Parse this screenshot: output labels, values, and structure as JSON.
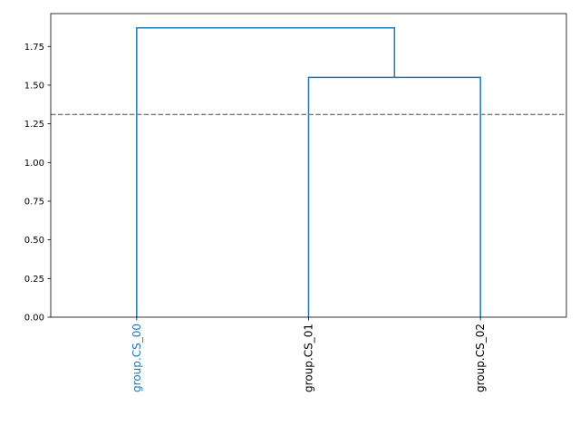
{
  "chart_data": {
    "type": "dendrogram",
    "title": "",
    "xlabel": "",
    "ylabel": "",
    "ylim": [
      0,
      1.9625
    ],
    "yticks": [
      0.0,
      0.25,
      0.5,
      0.75,
      1.0,
      1.25,
      1.5,
      1.75
    ],
    "ytick_labels": [
      "0.00",
      "0.25",
      "0.50",
      "0.75",
      "1.00",
      "1.25",
      "1.50",
      "1.75"
    ],
    "leaves": [
      {
        "label": "group.CS_00",
        "color": "#1f77b4"
      },
      {
        "label": "group.CS_01",
        "color": "#000000"
      },
      {
        "label": "group.CS_02",
        "color": "#000000"
      }
    ],
    "merges": [
      {
        "left": 1,
        "right": 2,
        "height": 1.55
      },
      {
        "left": 0,
        "right": 3,
        "height": 1.87
      }
    ],
    "link_color": "#1f77b4",
    "threshold": {
      "value": 1.31,
      "style": "dashed",
      "color": "#808080"
    },
    "grid": false,
    "legend": "none"
  }
}
